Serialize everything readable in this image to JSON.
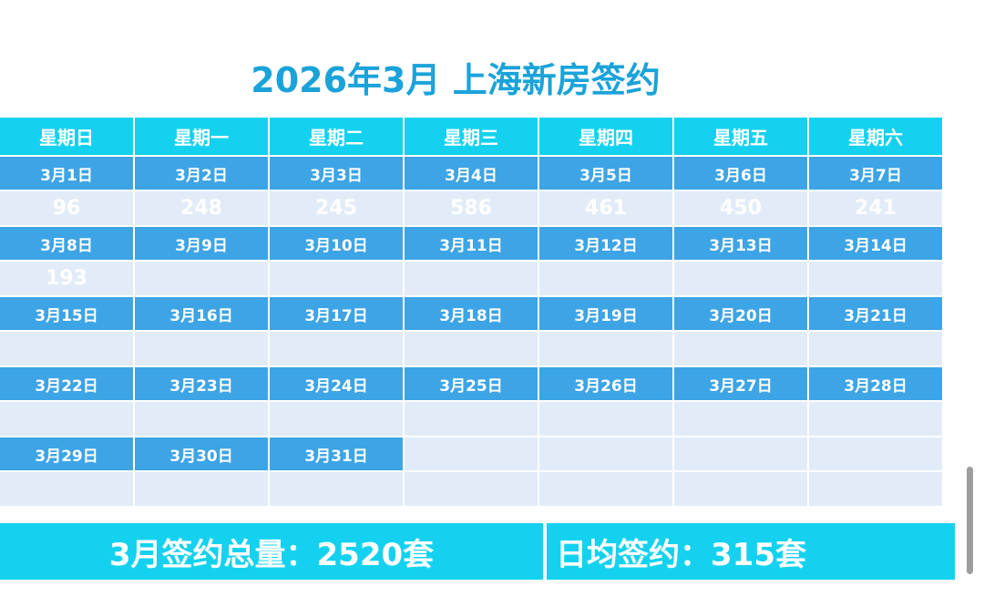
{
  "title": "2026年3月 上海新房签约",
  "weekdays": [
    "星期日",
    "星期一",
    "星期二",
    "星期三",
    "星期四",
    "星期五",
    "星期六"
  ],
  "weeks": [
    {
      "dates": [
        "3月1日",
        "3月2日",
        "3月3日",
        "3月4日",
        "3月5日",
        "3月6日",
        "3月7日"
      ],
      "values": [
        "96",
        "248",
        "245",
        "586",
        "461",
        "450",
        "241"
      ]
    },
    {
      "dates": [
        "3月8日",
        "3月9日",
        "3月10日",
        "3月11日",
        "3月12日",
        "3月13日",
        "3月14日"
      ],
      "values": [
        "193",
        "",
        "",
        "",
        "",
        "",
        ""
      ]
    },
    {
      "dates": [
        "3月15日",
        "3月16日",
        "3月17日",
        "3月18日",
        "3月19日",
        "3月20日",
        "3月21日"
      ],
      "values": [
        "",
        "",
        "",
        "",
        "",
        "",
        ""
      ]
    },
    {
      "dates": [
        "3月22日",
        "3月23日",
        "3月24日",
        "3月25日",
        "3月26日",
        "3月27日",
        "3月28日"
      ],
      "values": [
        "",
        "",
        "",
        "",
        "",
        "",
        ""
      ]
    },
    {
      "dates": [
        "3月29日",
        "3月30日",
        "3月31日",
        "",
        "",
        "",
        ""
      ],
      "values": [
        "",
        "",
        "",
        "",
        "",
        "",
        ""
      ]
    }
  ],
  "summary": {
    "total": "3月签约总量：2520套",
    "daily_avg": "日均签约：315套"
  },
  "colors": {
    "title": "#1aa3d9",
    "header_bg": "#14d2ef",
    "date_bg": "#3da4e6",
    "value_bg": "#e1ecf8",
    "weekend_text": "#e8ff2a",
    "value_green": "#1a9a4a",
    "value_red": "#e3232a"
  }
}
